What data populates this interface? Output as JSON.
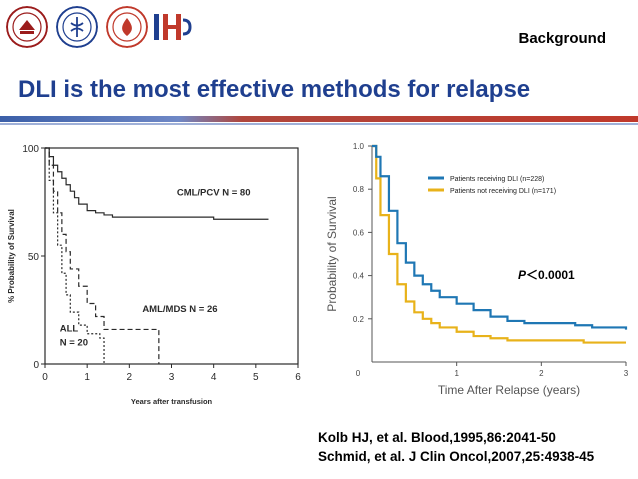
{
  "header": {
    "section_label": "Background",
    "title": "DLI is the most effective methods for relapse",
    "logos": [
      "university-seal-logo",
      "medical-school-seal-logo",
      "hematology-institute-logo",
      "ih-logo"
    ],
    "colors": {
      "title": "#1f3f8f",
      "accent_blue": "#3b5fa8",
      "accent_red": "#c0392b"
    }
  },
  "references": [
    "Kolb HJ, et al. Blood,1995,86:2041-50",
    "Schmid, et al. J Clin Oncol,2007,25:4938-45"
  ],
  "chart_data": [
    {
      "type": "line",
      "style": "kaplan-meier-step",
      "xlabel": "Years after transfusion",
      "ylabel": "% Probability of Survival",
      "xlim": [
        0,
        6
      ],
      "ylim": [
        0,
        100
      ],
      "x_ticks": [
        "0",
        "1",
        "2",
        "3",
        "4",
        "5",
        "6"
      ],
      "y_ticks": [
        "0",
        "50",
        "100"
      ],
      "series": [
        {
          "name": "CML/PCV",
          "label": "CML/PCV   N = 80",
          "line": "solid",
          "x": [
            0,
            0.1,
            0.2,
            0.3,
            0.4,
            0.5,
            0.6,
            0.7,
            0.8,
            1.0,
            1.2,
            1.4,
            1.6,
            3.8,
            4.0,
            4.4,
            5.3
          ],
          "y": [
            100,
            96,
            92,
            89,
            86,
            83,
            80,
            77,
            74,
            71,
            70,
            69,
            68,
            68,
            67,
            67,
            67
          ]
        },
        {
          "name": "AML/MDS",
          "label": "AML/MDS   N = 26",
          "line": "dashed",
          "x": [
            0,
            0.1,
            0.2,
            0.3,
            0.4,
            0.5,
            0.6,
            0.8,
            1.0,
            1.2,
            1.4,
            2.0,
            2.6,
            2.7
          ],
          "y": [
            100,
            92,
            80,
            70,
            60,
            52,
            44,
            36,
            28,
            22,
            16,
            16,
            16,
            0
          ]
        },
        {
          "name": "ALL",
          "label": "ALL\nN = 20",
          "line": "dotted",
          "x": [
            0,
            0.1,
            0.2,
            0.3,
            0.4,
            0.5,
            0.6,
            0.8,
            1.0,
            1.3,
            1.4
          ],
          "y": [
            100,
            85,
            70,
            55,
            42,
            32,
            24,
            18,
            14,
            12,
            0
          ]
        }
      ]
    },
    {
      "type": "line",
      "style": "kaplan-meier-step",
      "xlabel": "Time After Relapse (years)",
      "ylabel": "Probability of Survival",
      "xlim": [
        0,
        3
      ],
      "ylim": [
        0,
        1.0
      ],
      "x_ticks": [
        "0",
        "1",
        "2",
        "3"
      ],
      "y_ticks": [
        "0.2",
        "0.4",
        "0.6",
        "0.8",
        "1.0"
      ],
      "annotation": "P＜0.0001",
      "legend": "top-right",
      "series": [
        {
          "name": "Patients receiving DLI  (n=228)",
          "color": "#1f77b4",
          "x": [
            0.0,
            0.05,
            0.1,
            0.2,
            0.3,
            0.4,
            0.5,
            0.6,
            0.7,
            0.8,
            1.0,
            1.2,
            1.4,
            1.6,
            1.8,
            2.0,
            2.4,
            2.6,
            2.8,
            3.0
          ],
          "y": [
            1.0,
            0.95,
            0.86,
            0.7,
            0.55,
            0.46,
            0.4,
            0.36,
            0.33,
            0.3,
            0.27,
            0.24,
            0.21,
            0.19,
            0.18,
            0.18,
            0.17,
            0.16,
            0.16,
            0.15
          ]
        },
        {
          "name": "Patients not receiving DLI  (n=171)",
          "color": "#e8b21a",
          "x": [
            0.0,
            0.05,
            0.1,
            0.2,
            0.3,
            0.4,
            0.5,
            0.6,
            0.7,
            0.8,
            1.0,
            1.2,
            1.4,
            1.6,
            1.8,
            2.0,
            2.5,
            3.0
          ],
          "y": [
            1.0,
            0.85,
            0.68,
            0.5,
            0.36,
            0.28,
            0.23,
            0.2,
            0.18,
            0.16,
            0.14,
            0.12,
            0.11,
            0.1,
            0.1,
            0.1,
            0.09,
            0.09
          ]
        }
      ]
    }
  ]
}
